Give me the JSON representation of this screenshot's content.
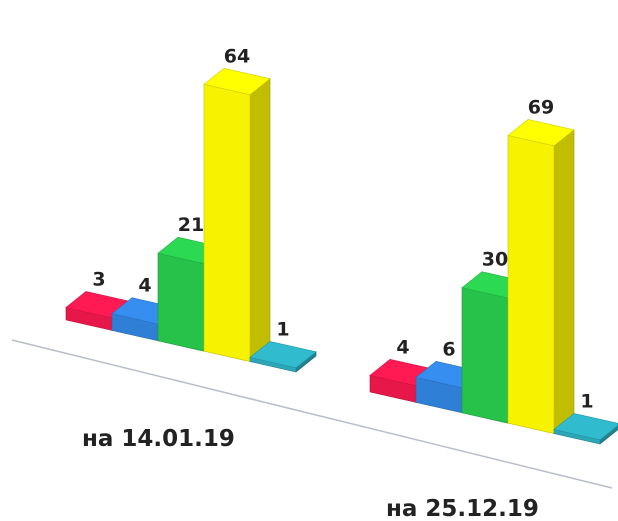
{
  "chart_data": {
    "type": "bar",
    "style": "3d",
    "categories": [
      "на 14.01.19",
      "на 25.12.19"
    ],
    "series": [
      {
        "values": [
          3,
          4
        ],
        "color": "#e8174a"
      },
      {
        "values": [
          4,
          6
        ],
        "color": "#2f7fd6"
      },
      {
        "values": [
          21,
          30
        ],
        "color": "#27c24a"
      },
      {
        "values": [
          64,
          69
        ],
        "color": "#f7f200"
      },
      {
        "values": [
          1,
          1
        ],
        "color": "#2ba7b8"
      }
    ],
    "title": "",
    "xlabel": "",
    "ylabel": "",
    "ylim": [
      0,
      70
    ],
    "grid": false,
    "legend": "none"
  }
}
